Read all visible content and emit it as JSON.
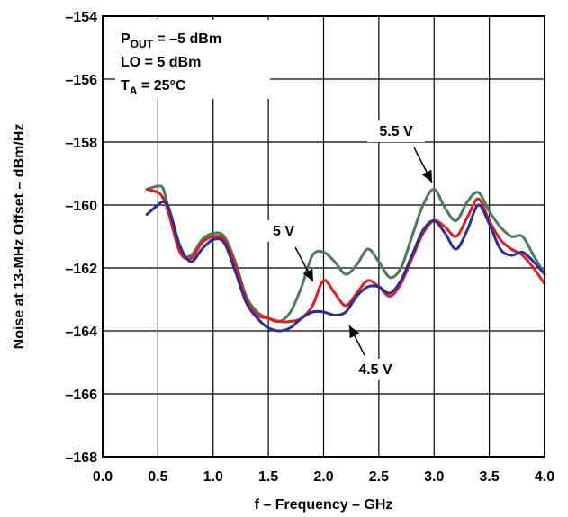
{
  "chart_data": {
    "type": "line",
    "xlabel": "f – Frequency – GHz",
    "ylabel": "Noise at 13-MHz Offset – dBm/Hz",
    "xlim": [
      0.0,
      4.0
    ],
    "ylim": [
      -168,
      -154
    ],
    "x_ticks": [
      "0.0",
      "0.5",
      "1.0",
      "1.5",
      "2.0",
      "2.5",
      "3.0",
      "3.5",
      "4.0"
    ],
    "y_ticks": [
      "–154",
      "–156",
      "–158",
      "–160",
      "–162",
      "–164",
      "–166",
      "–168"
    ],
    "grid": true,
    "conditions": {
      "pout": {
        "main": "P",
        "sub": "OUT",
        "rest": " = –5 dBm"
      },
      "lo": "LO = 5 dBm",
      "ta": {
        "main": "T",
        "sub": "A",
        "rest": " = 25°C"
      }
    },
    "series": [
      {
        "name": "5.5 V",
        "color": "#4a7c59",
        "x": [
          0.4,
          0.5,
          0.55,
          0.6,
          0.7,
          0.8,
          0.9,
          1.0,
          1.1,
          1.2,
          1.3,
          1.4,
          1.5,
          1.6,
          1.7,
          1.8,
          1.9,
          2.0,
          2.1,
          2.2,
          2.3,
          2.4,
          2.5,
          2.6,
          2.7,
          2.8,
          2.9,
          3.0,
          3.1,
          3.2,
          3.3,
          3.4,
          3.5,
          3.6,
          3.7,
          3.8,
          3.9,
          4.0
        ],
        "y": [
          -159.5,
          -159.4,
          -159.5,
          -160.2,
          -161.5,
          -161.6,
          -161.1,
          -160.9,
          -161.0,
          -161.8,
          -162.9,
          -163.4,
          -163.6,
          -163.7,
          -163.4,
          -162.6,
          -161.6,
          -161.5,
          -161.8,
          -162.2,
          -161.9,
          -161.4,
          -161.8,
          -162.3,
          -162.0,
          -161.0,
          -160.0,
          -159.5,
          -160.1,
          -160.5,
          -159.9,
          -159.6,
          -160.2,
          -160.7,
          -161.0,
          -161.0,
          -161.6,
          -162.2
        ]
      },
      {
        "name": "5 V",
        "color": "#e02020",
        "x": [
          0.4,
          0.5,
          0.55,
          0.6,
          0.7,
          0.8,
          0.9,
          1.0,
          1.1,
          1.2,
          1.3,
          1.4,
          1.5,
          1.6,
          1.7,
          1.8,
          1.9,
          2.0,
          2.1,
          2.2,
          2.3,
          2.4,
          2.5,
          2.6,
          2.7,
          2.8,
          2.9,
          3.0,
          3.1,
          3.2,
          3.3,
          3.4,
          3.5,
          3.6,
          3.7,
          3.8,
          3.9,
          4.0
        ],
        "y": [
          -159.5,
          -159.6,
          -159.8,
          -160.3,
          -161.5,
          -161.7,
          -161.2,
          -161.0,
          -161.1,
          -161.9,
          -163.0,
          -163.5,
          -163.6,
          -163.7,
          -163.7,
          -163.6,
          -163.2,
          -162.4,
          -162.8,
          -163.2,
          -162.8,
          -162.4,
          -162.6,
          -162.9,
          -162.5,
          -161.7,
          -160.9,
          -160.5,
          -160.7,
          -161.0,
          -160.4,
          -159.8,
          -160.5,
          -161.1,
          -161.4,
          -161.6,
          -162.0,
          -162.5
        ]
      },
      {
        "name": "4.5 V",
        "color": "#2a2e9a",
        "x": [
          0.4,
          0.5,
          0.55,
          0.6,
          0.7,
          0.8,
          0.9,
          1.0,
          1.1,
          1.2,
          1.3,
          1.4,
          1.5,
          1.6,
          1.7,
          1.8,
          1.9,
          2.0,
          2.1,
          2.2,
          2.3,
          2.4,
          2.5,
          2.6,
          2.7,
          2.8,
          2.9,
          3.0,
          3.1,
          3.2,
          3.3,
          3.4,
          3.5,
          3.6,
          3.7,
          3.8,
          3.9,
          4.0
        ],
        "y": [
          -160.3,
          -160.0,
          -159.9,
          -160.1,
          -161.3,
          -161.8,
          -161.4,
          -161.1,
          -161.2,
          -162.1,
          -163.1,
          -163.6,
          -163.9,
          -164.0,
          -163.9,
          -163.6,
          -163.4,
          -163.4,
          -163.5,
          -163.4,
          -162.9,
          -162.6,
          -162.6,
          -162.8,
          -162.4,
          -161.6,
          -160.8,
          -160.5,
          -160.9,
          -161.4,
          -160.8,
          -160.0,
          -160.6,
          -161.4,
          -161.6,
          -161.5,
          -161.8,
          -162.2
        ]
      }
    ],
    "annotations": [
      {
        "label": "5.5 V",
        "series": "5.5 V"
      },
      {
        "label": "5 V",
        "series": "5 V"
      },
      {
        "label": "4.5 V",
        "series": "4.5 V"
      }
    ]
  }
}
